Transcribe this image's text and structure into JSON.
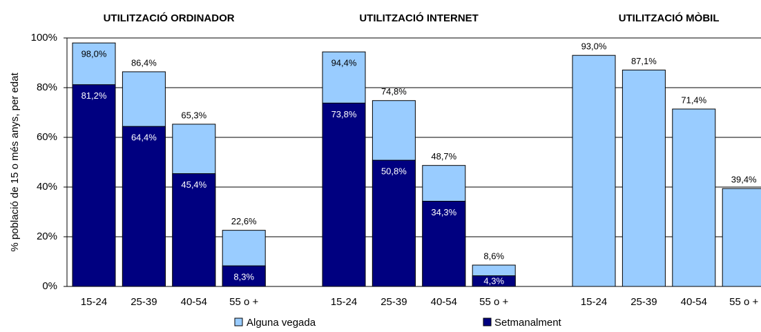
{
  "chart_data": [
    {
      "type": "bar",
      "title": "UTILITZACIÓ ORDINADOR",
      "ylabel": "% població de 15 o més anys, per edat",
      "ylim": [
        0,
        100
      ],
      "yticks": [
        {
          "value": 0,
          "label": "0%"
        },
        {
          "value": 20,
          "label": "20%"
        },
        {
          "value": 40,
          "label": "40%"
        },
        {
          "value": 60,
          "label": "60%"
        },
        {
          "value": 80,
          "label": "80%"
        },
        {
          "value": 100,
          "label": "100%"
        }
      ],
      "grid": true,
      "categories": [
        "15-24",
        "25-39",
        "40-54",
        "55 o +"
      ],
      "series": [
        {
          "name": "Alguna vegada",
          "color": "#99ccff",
          "values": [
            98.0,
            86.4,
            65.3,
            22.6
          ],
          "value_labels": [
            "98,0%",
            "86,4%",
            "65,3%",
            "22,6%"
          ]
        },
        {
          "name": "Setmanalment",
          "color": "#000080",
          "values": [
            81.2,
            64.4,
            45.4,
            8.3
          ],
          "value_labels": [
            "81,2%",
            "64,4%",
            "45,4%",
            "8,3%"
          ]
        }
      ]
    },
    {
      "type": "bar",
      "title": "UTILITZACIÓ INTERNET",
      "ylim": [
        0,
        100
      ],
      "categories": [
        "15-24",
        "25-39",
        "40-54",
        "55 o +"
      ],
      "series": [
        {
          "name": "Alguna vegada",
          "color": "#99ccff",
          "values": [
            94.4,
            74.8,
            48.7,
            8.6
          ],
          "value_labels": [
            "94,4%",
            "74,8%",
            "48,7%",
            "8,6%"
          ]
        },
        {
          "name": "Setmanalment",
          "color": "#000080",
          "values": [
            73.8,
            50.8,
            34.3,
            4.3
          ],
          "value_labels": [
            "73,8%",
            "50,8%",
            "34,3%",
            "4,3%"
          ]
        }
      ]
    },
    {
      "type": "bar",
      "title": "UTILITZACIÓ MÒBIL",
      "ylim": [
        0,
        100
      ],
      "categories": [
        "15-24",
        "25-39",
        "40-54",
        "55 o +"
      ],
      "series": [
        {
          "name": "Alguna vegada",
          "color": "#99ccff",
          "values": [
            93.0,
            87.1,
            71.4,
            39.4
          ],
          "value_labels": [
            "93,0%",
            "87,1%",
            "71,4%",
            "39,4%"
          ]
        }
      ]
    }
  ]
}
